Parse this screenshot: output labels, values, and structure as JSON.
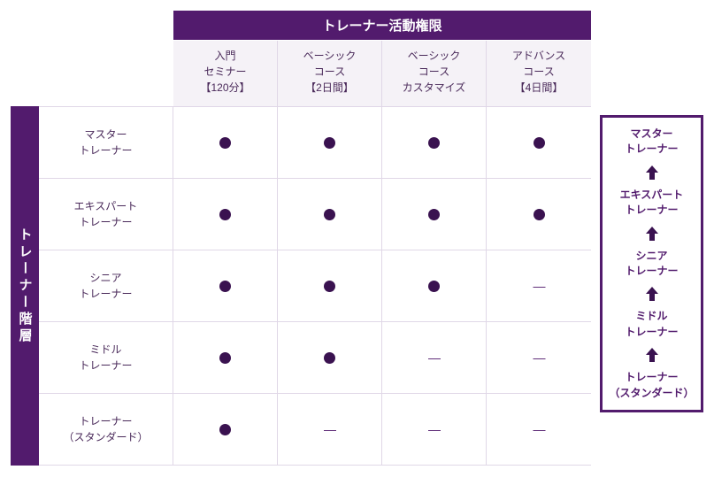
{
  "colors": {
    "brand": "#521b6d",
    "dot": "#3a1250",
    "text": "#4a2a5a",
    "col_bg": "#f5f2f7",
    "border": "#e0d7e7"
  },
  "header": {
    "title": "トレーナー活動権限"
  },
  "sidebar": {
    "title": "トレーナー階層"
  },
  "columns": [
    {
      "line1": "入門",
      "line2": "セミナー",
      "line3": "【120分】"
    },
    {
      "line1": "ベーシック",
      "line2": "コース",
      "line3": "【2日間】"
    },
    {
      "line1": "ベーシック",
      "line2": "コース",
      "line3": "カスタマイズ"
    },
    {
      "line1": "アドバンス",
      "line2": "コース",
      "line3": "【4日間】"
    }
  ],
  "rows": [
    {
      "label_l1": "マスター",
      "label_l2": "トレーナー",
      "cells": [
        "dot",
        "dot",
        "dot",
        "dot"
      ]
    },
    {
      "label_l1": "エキスパート",
      "label_l2": "トレーナー",
      "cells": [
        "dot",
        "dot",
        "dot",
        "dot"
      ]
    },
    {
      "label_l1": "シニア",
      "label_l2": "トレーナー",
      "cells": [
        "dot",
        "dot",
        "dot",
        "dash"
      ]
    },
    {
      "label_l1": "ミドル",
      "label_l2": "トレーナー",
      "cells": [
        "dot",
        "dot",
        "dash",
        "dash"
      ]
    },
    {
      "label_l1": "トレーナー",
      "label_l2": "（スタンダード）",
      "cells": [
        "dot",
        "dash",
        "dash",
        "dash"
      ]
    }
  ],
  "ladder": [
    {
      "l1": "マスター",
      "l2": "トレーナー"
    },
    {
      "l1": "エキスパート",
      "l2": "トレーナー"
    },
    {
      "l1": "シニア",
      "l2": "トレーナー"
    },
    {
      "l1": "ミドル",
      "l2": "トレーナー"
    },
    {
      "l1": "トレーナー",
      "l2": "（スタンダード）"
    }
  ]
}
